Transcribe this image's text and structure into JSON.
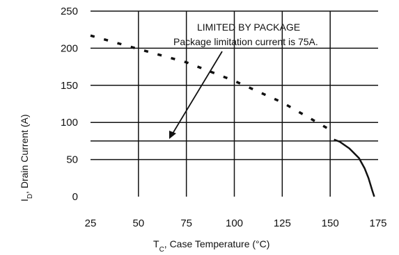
{
  "chart_data": {
    "type": "line",
    "xlabel": "T",
    "xlabel_sub": "C",
    "xlabel_rest": ", Case Temperature (°C)",
    "ylabel": "I",
    "ylabel_sub": "D",
    "ylabel_rest": ", Drain Current (A)",
    "xlim": [
      25,
      175
    ],
    "ylim": [
      0,
      250
    ],
    "x_ticks": [
      "25",
      "50",
      "75",
      "100",
      "125",
      "150",
      "175"
    ],
    "y_ticks": [
      "0",
      "50",
      "100",
      "150",
      "200",
      "250"
    ],
    "grid": true,
    "annotations": [
      "LIMITED BY PACKAGE",
      "Package limitation current is 75A."
    ],
    "series": [
      {
        "style": "dashed",
        "x": [
          25,
          50,
          75,
          100,
          125,
          150
        ],
        "y": [
          217,
          199,
          181,
          156,
          127,
          90
        ]
      },
      {
        "style": "solid",
        "x": [
          25,
          175
        ],
        "y": [
          75,
          75
        ]
      },
      {
        "style": "solid",
        "x": [
          152,
          155,
          160,
          165,
          168,
          170,
          172,
          173
        ],
        "y": [
          77,
          74,
          65,
          52,
          38,
          25,
          8,
          0
        ]
      }
    ]
  }
}
